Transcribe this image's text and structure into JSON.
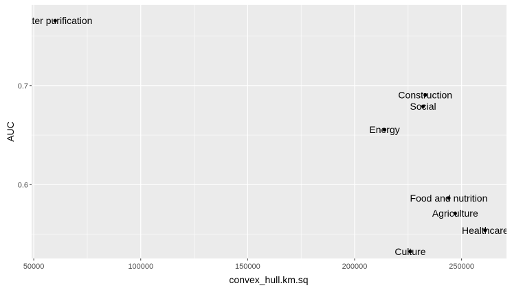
{
  "chart_data": {
    "type": "scatter",
    "xlabel": "convex_hull.km.sq",
    "ylabel": "AUC",
    "xlim": [
      49000,
      271000
    ],
    "ylim": [
      0.5255,
      0.7815
    ],
    "x_ticks": [
      50000,
      100000,
      150000,
      200000,
      250000
    ],
    "x_tick_labels": [
      "50000",
      "100000",
      "150000",
      "200000",
      "250000"
    ],
    "y_ticks": [
      0.6,
      0.7
    ],
    "y_tick_labels": [
      "0.6",
      "0.7"
    ],
    "grid": true,
    "background": "#ebebeb",
    "grid_color": "#ffffff",
    "point_color": "#000000",
    "points": [
      {
        "label": "Water purification",
        "x": 60000,
        "y": 0.7655
      },
      {
        "label": "Construction",
        "x": 233000,
        "y": 0.6905
      },
      {
        "label": "Social",
        "x": 232000,
        "y": 0.679
      },
      {
        "label": "Energy",
        "x": 214000,
        "y": 0.6555
      },
      {
        "label": "Food and nutrition",
        "x": 244000,
        "y": 0.5865
      },
      {
        "label": "Agriculture",
        "x": 247000,
        "y": 0.571
      },
      {
        "label": "Healthcare",
        "x": 261000,
        "y": 0.554
      },
      {
        "label": "Culture",
        "x": 226000,
        "y": 0.5325
      }
    ]
  }
}
